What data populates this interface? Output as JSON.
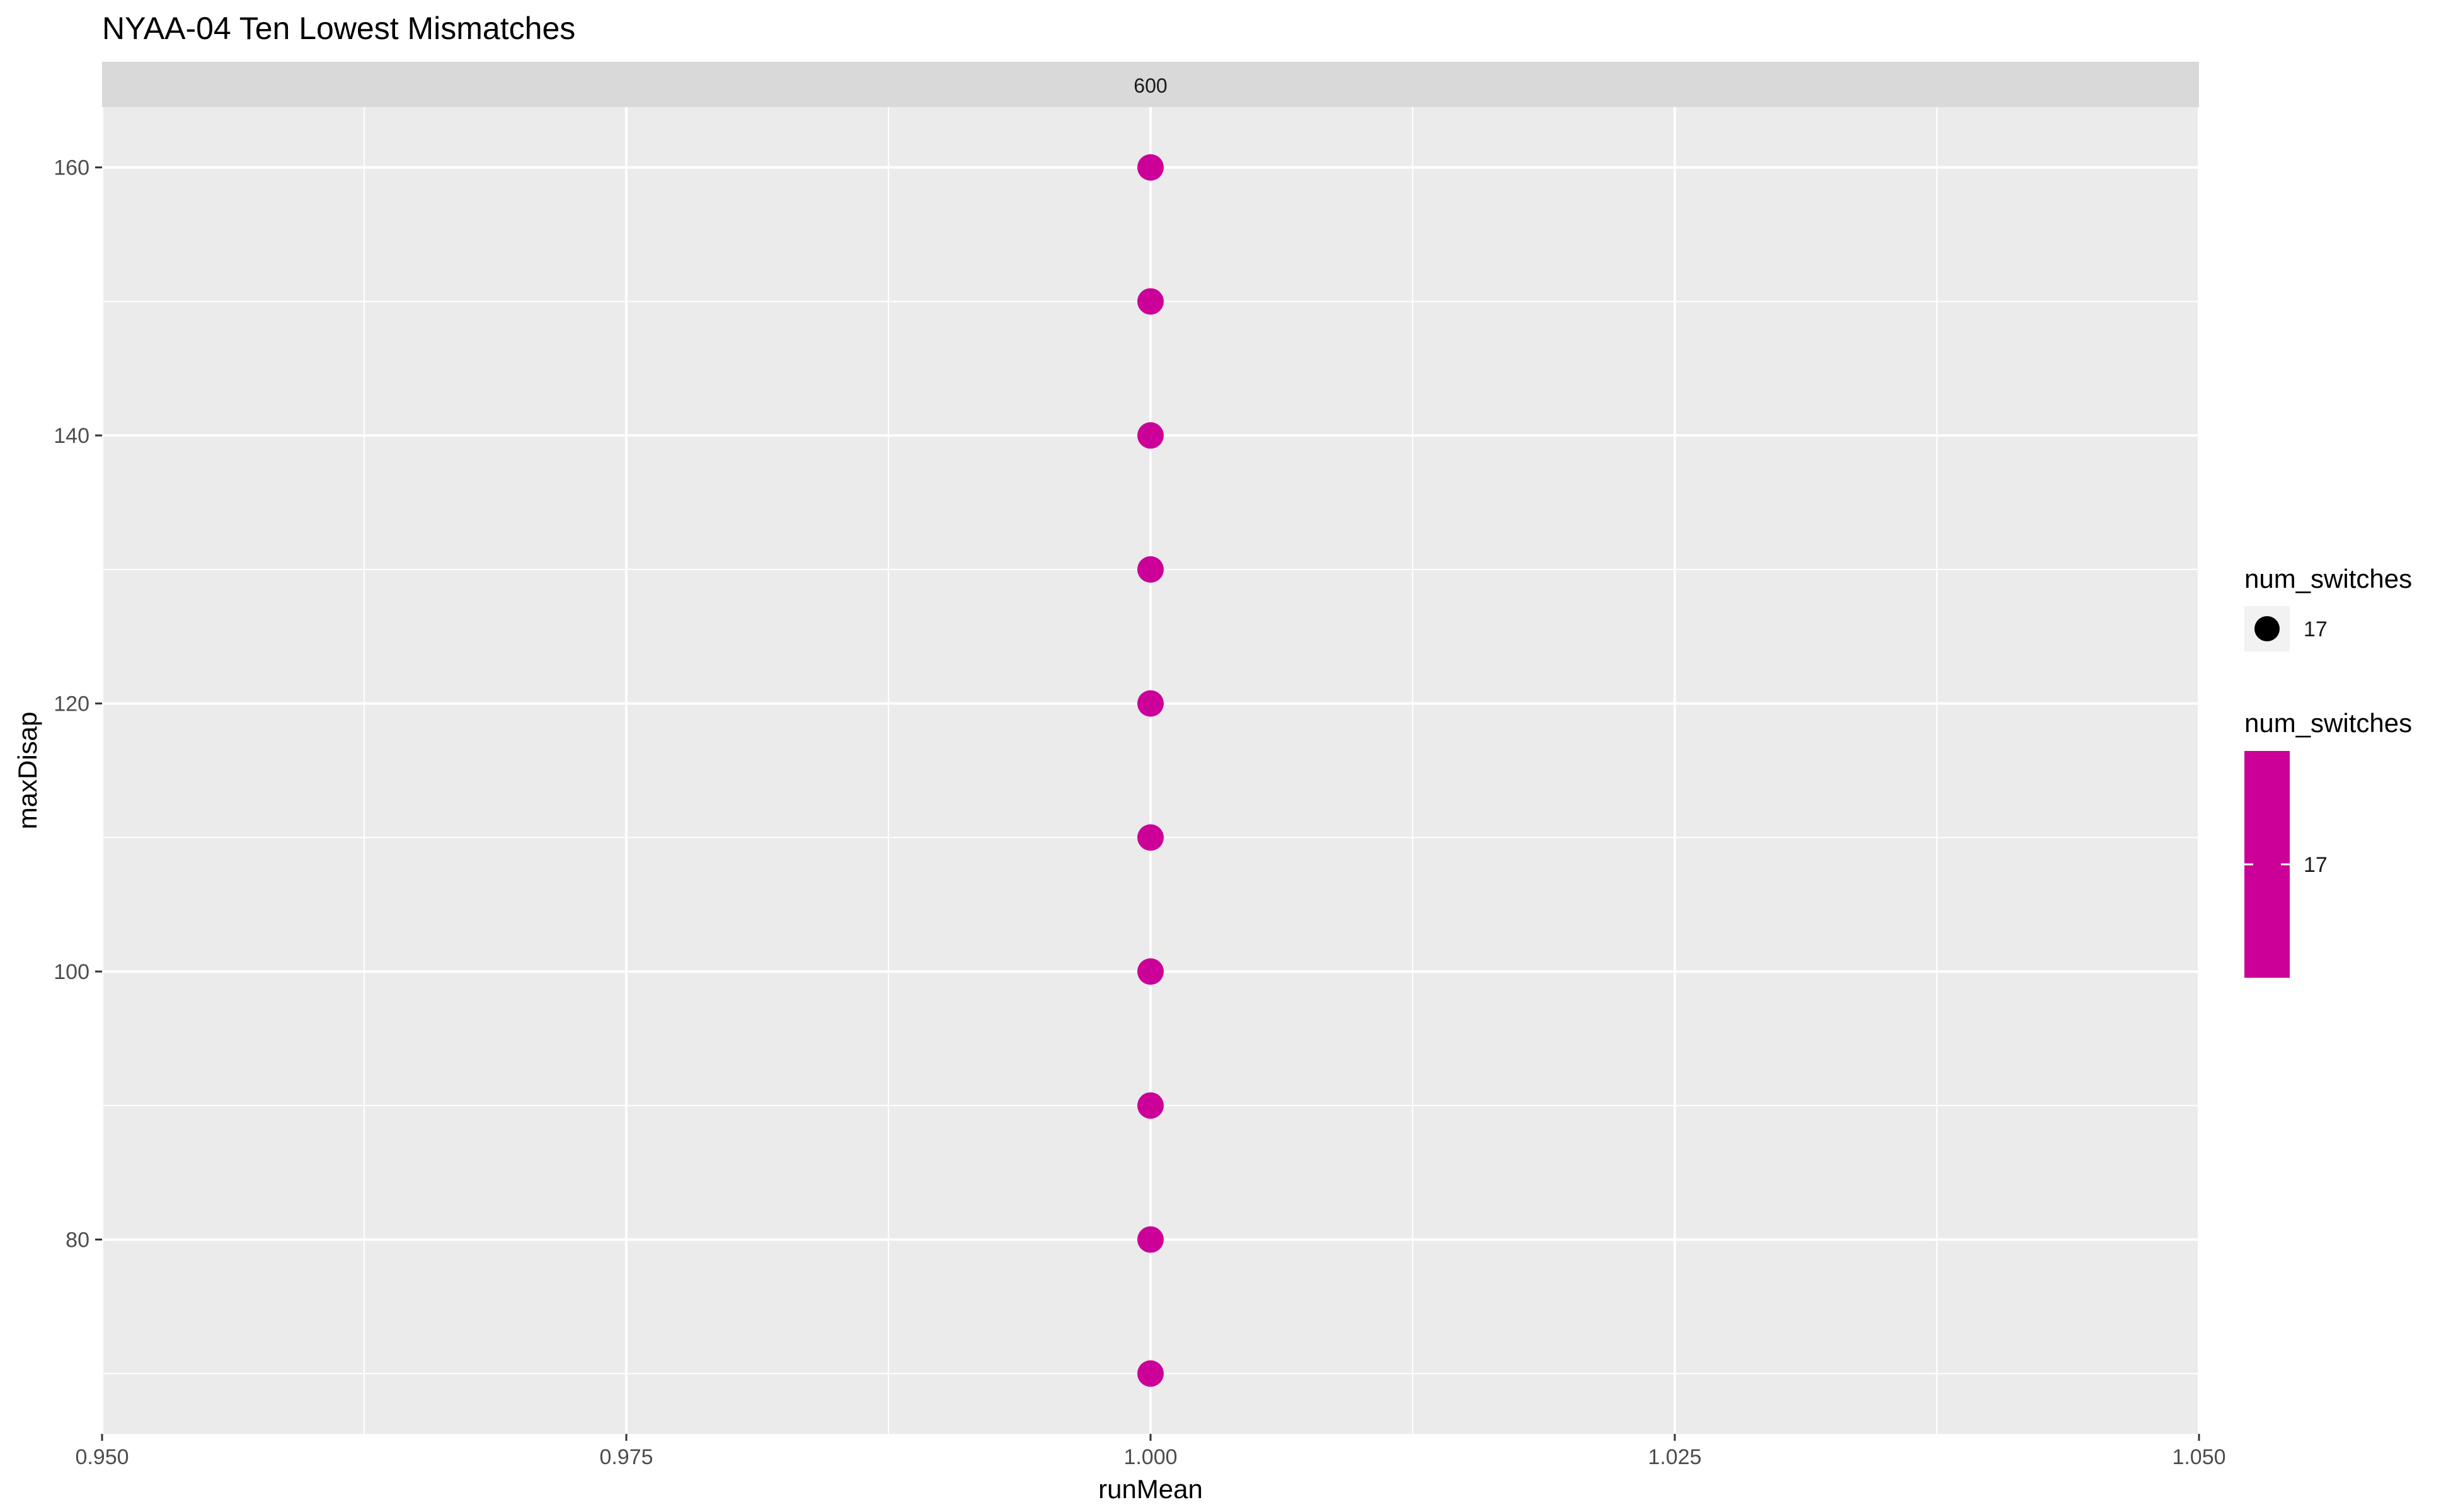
{
  "chart_data": {
    "type": "scatter",
    "title": "NYAA-04 Ten Lowest Mismatches",
    "facet_label": "600",
    "xlabel": "runMean",
    "ylabel": "maxDisap",
    "xlim": [
      0.95,
      1.05
    ],
    "ylim": [
      65.5,
      164.5
    ],
    "x_ticks": [
      0.95,
      0.975,
      1.0,
      1.025,
      1.05
    ],
    "x_tick_labels": [
      "0.950",
      "0.975",
      "1.000",
      "1.025",
      "1.050"
    ],
    "y_ticks": [
      80,
      100,
      120,
      140,
      160
    ],
    "y_tick_labels": [
      "80",
      "100",
      "120",
      "140",
      "160"
    ],
    "grid": true,
    "legend_placement": "right",
    "series": [
      {
        "x": [
          1.0,
          1.0,
          1.0,
          1.0,
          1.0,
          1.0,
          1.0,
          1.0,
          1.0,
          1.0
        ],
        "y": [
          70,
          80,
          90,
          100,
          110,
          120,
          130,
          140,
          150,
          160
        ],
        "num_switches": 17
      }
    ],
    "legends": [
      {
        "title": "num_switches",
        "kind": "size",
        "label": "17"
      },
      {
        "title": "num_switches",
        "kind": "colorbar",
        "label": "17"
      }
    ],
    "colors": {
      "point": "#CC0099",
      "panel": "#EBEBEB",
      "strip": "#D9D9D9",
      "grid": "#FFFFFF",
      "legend_point": "#000000"
    }
  }
}
